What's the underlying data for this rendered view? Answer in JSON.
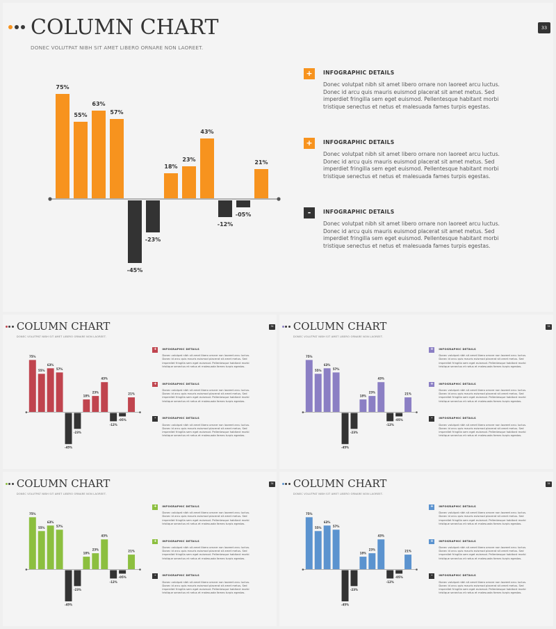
{
  "slides": [
    {
      "key": "orange",
      "accent": "#f7931e",
      "page": "33"
    },
    {
      "key": "red",
      "accent": "#c0444e",
      "page": "34"
    },
    {
      "key": "purple",
      "accent": "#8b7fc4",
      "page": "34"
    },
    {
      "key": "green",
      "accent": "#8cbf3f",
      "page": "34"
    },
    {
      "key": "blue",
      "accent": "#5b93cf",
      "page": "34"
    }
  ],
  "title": "COLUMN CHART",
  "subtitle": "DONEC VOLUTPAT NIBH SIT AMET LIBERO ORNARE NON LAOREET.",
  "negative_color": "#333333",
  "dot_colors": [
    "#f7931e",
    "#3a3a3a"
  ],
  "info": [
    {
      "icon": "+",
      "heading": "INFOGRAPHIC DETAILS",
      "body": "Donec volutpat nibh sit amet libero ornare non laoreet arcu luctus. Donec id arcu quis mauris euismod placerat sit amet metus. Sed imperdiet fringilla sem eget euismod. Pellentesque habitant morbi tristique senectus et netus et malesuada fames turpis egestas."
    },
    {
      "icon": "+",
      "heading": "INFOGRAPHIC DETAILS",
      "body": "Donec volutpat nibh sit amet libero ornare non laoreet arcu luctus. Donec id arcu quis mauris euismod placerat sit amet metus. Sed imperdiet fringilla sem eget euismod. Pellentesque habitant morbi tristique senectus et netus et malesuada fames turpis egestas."
    },
    {
      "icon": "-",
      "heading": "INFOGRAPHIC DETAILS",
      "body": "Donec volutpat nibh sit amet libero ornare non laoreet arcu luctus. Donec id arcu quis mauris euismod placerat sit amet metus. Sed imperdiet fringilla sem eget euismod. Pellentesque habitant morbi tristique senectus et netus et malesuada fames turpis egestas."
    }
  ],
  "chart_data": {
    "type": "bar",
    "title": "",
    "xlabel": "",
    "ylabel": "",
    "ylim": [
      -45,
      75
    ],
    "grid": false,
    "values": [
      75,
      55,
      63,
      57,
      -45,
      -23,
      18,
      23,
      43,
      -12,
      -5,
      21
    ],
    "labels": [
      "75%",
      "55%",
      "63%",
      "57%",
      "-45%",
      "-23%",
      "18%",
      "23%",
      "43%",
      "-12%",
      "-05%",
      "21%"
    ]
  }
}
